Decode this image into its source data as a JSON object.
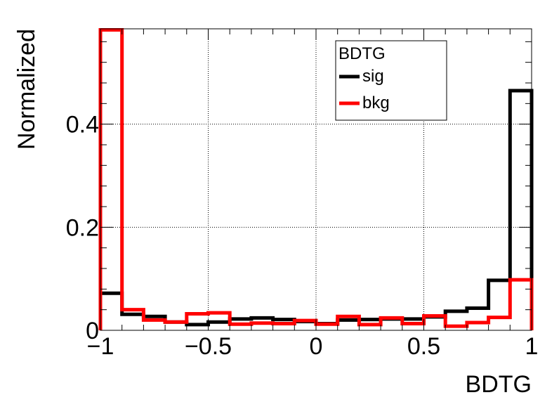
{
  "chart_data": {
    "type": "line",
    "title": "",
    "xlabel": "BDTG",
    "ylabel": "Normalized",
    "xlim": [
      -1,
      1
    ],
    "ylim": [
      0,
      0.585
    ],
    "grid": true,
    "x_ticks": [
      -1,
      -0.5,
      0,
      0.5,
      1
    ],
    "x_tick_labels": [
      "−1",
      "−0.5",
      "0",
      "0.5",
      "1"
    ],
    "y_ticks": [
      0,
      0.2,
      0.4
    ],
    "y_tick_labels": [
      "0",
      "0.2",
      "0.4"
    ],
    "legend": {
      "title": "BDTG",
      "placement": "top-center"
    },
    "bin_edges": [
      -1.0,
      -0.9,
      -0.8,
      -0.7,
      -0.6,
      -0.5,
      -0.4,
      -0.3,
      -0.2,
      -0.1,
      0.0,
      0.1,
      0.2,
      0.3,
      0.4,
      0.5,
      0.6,
      0.7,
      0.8,
      0.9,
      1.0
    ],
    "series": [
      {
        "name": "sig",
        "color": "#000000",
        "values": [
          0.072,
          0.031,
          0.027,
          0.016,
          0.011,
          0.016,
          0.022,
          0.024,
          0.021,
          0.017,
          0.013,
          0.02,
          0.021,
          0.022,
          0.022,
          0.026,
          0.037,
          0.043,
          0.097,
          0.465
        ]
      },
      {
        "name": "bkg",
        "color": "#ff0000",
        "values": [
          0.583,
          0.04,
          0.02,
          0.016,
          0.032,
          0.034,
          0.012,
          0.014,
          0.013,
          0.019,
          0.012,
          0.027,
          0.011,
          0.024,
          0.013,
          0.028,
          0.008,
          0.015,
          0.025,
          0.098
        ]
      }
    ]
  }
}
